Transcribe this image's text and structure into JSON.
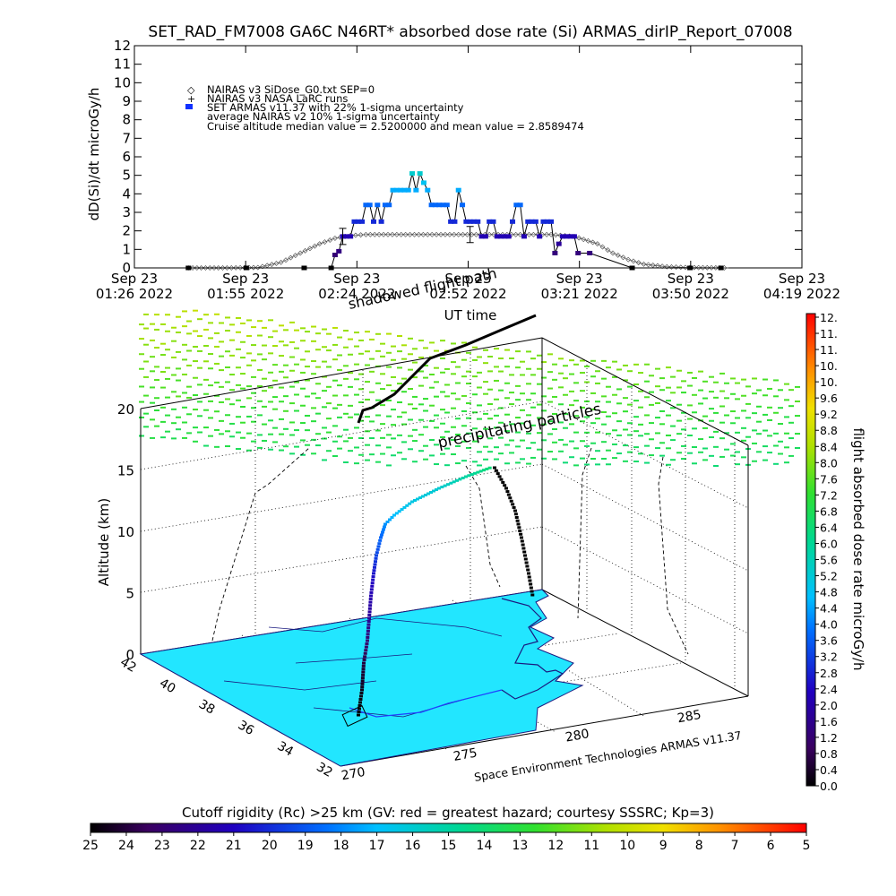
{
  "top_chart": {
    "title": "SET_RAD_FM7008  GA6C N46RT* absorbed dose rate (Si) ARMAS_dirIP_Report_07008",
    "ylabel": "dD(Si)/dt microGy/h",
    "xlabel": "UT time",
    "legend": [
      "NAIRAS v3 SiDose_G0.txt SEP=0",
      "NAIRAS v3 NASA LaRC runs",
      "SET ARMAS v11.37 with 22% 1-sigma uncertainty",
      "average NAIRAS v2 10% 1-sigma uncertainty",
      "Cruise altitude median value = 2.5200000 and mean value = 2.8589474"
    ],
    "x_ticks": [
      {
        "date": "Sep 23",
        "time": "01:26 2022"
      },
      {
        "date": "Sep 23",
        "time": "01:55 2022"
      },
      {
        "date": "Sep 23",
        "time": "02:24 2022"
      },
      {
        "date": "Sep 23",
        "time": "02:52 2022"
      },
      {
        "date": "Sep 23",
        "time": "03:21 2022"
      },
      {
        "date": "Sep 23",
        "time": "03:50 2022"
      },
      {
        "date": "Sep 23",
        "time": "04:19 2022"
      }
    ],
    "y_ticks": [
      "0",
      "1",
      "2",
      "3",
      "4",
      "5",
      "6",
      "7",
      "8",
      "9",
      "10",
      "11",
      "12"
    ]
  },
  "chart_data": [
    {
      "type": "line",
      "title": "SET_RAD_FM7008  GA6C N46RT* absorbed dose rate (Si) ARMAS_dirIP_Report_07008",
      "xlabel": "UT time",
      "ylabel": "dD(Si)/dt microGy/h",
      "xlim": [
        "01:26",
        "04:19"
      ],
      "ylim": [
        0,
        12
      ],
      "series": [
        {
          "name": "NAIRAS v3 SiDose_G0.txt SEP=0",
          "x": [
            "01:40",
            "01:50",
            "01:58",
            "02:04",
            "02:09",
            "02:14",
            "02:18",
            "02:22",
            "02:26",
            "02:34",
            "02:42",
            "02:50",
            "02:58",
            "03:06",
            "03:14",
            "03:20",
            "03:26",
            "03:30",
            "03:34",
            "03:38",
            "03:44",
            "03:50",
            "04:00"
          ],
          "y": [
            0,
            0,
            0.02,
            0.3,
            0.8,
            1.3,
            1.6,
            1.75,
            1.8,
            1.8,
            1.8,
            1.8,
            1.8,
            1.8,
            1.8,
            1.7,
            1.3,
            0.8,
            0.45,
            0.2,
            0.06,
            0.02,
            0
          ]
        },
        {
          "name": "SET ARMAS v11.37 with 22% 1-sigma uncertainty",
          "x": [
            "01:40",
            "01:55",
            "02:10",
            "02:17",
            "02:18",
            "02:19",
            "02:20",
            "02:21",
            "02:22",
            "02:23",
            "02:24",
            "02:25",
            "02:26",
            "02:27",
            "02:28",
            "02:29",
            "02:30",
            "02:31",
            "02:32",
            "02:33",
            "02:34",
            "02:35",
            "02:36",
            "02:37",
            "02:38",
            "02:39",
            "02:40",
            "02:41",
            "02:42",
            "02:43",
            "02:44",
            "02:45",
            "02:46",
            "02:47",
            "02:48",
            "02:49",
            "02:50",
            "02:51",
            "02:52",
            "02:53",
            "02:54",
            "02:55",
            "02:56",
            "02:57",
            "02:58",
            "02:59",
            "03:00",
            "03:01",
            "03:02",
            "03:03",
            "03:04",
            "03:05",
            "03:06",
            "03:07",
            "03:08",
            "03:09",
            "03:10",
            "03:11",
            "03:12",
            "03:13",
            "03:14",
            "03:15",
            "03:16",
            "03:17",
            "03:18",
            "03:19",
            "03:20",
            "03:21",
            "03:24",
            "03:35",
            "03:50",
            "03:58"
          ],
          "y": [
            0,
            0,
            0,
            0,
            0.7,
            0.9,
            1.7,
            1.7,
            1.7,
            2.5,
            2.5,
            2.5,
            3.4,
            3.4,
            2.5,
            3.4,
            2.5,
            3.4,
            3.4,
            4.2,
            4.2,
            4.2,
            4.2,
            4.2,
            5.1,
            4.2,
            5.1,
            4.6,
            4.2,
            3.4,
            3.4,
            3.4,
            3.4,
            3.4,
            2.5,
            2.5,
            4.2,
            3.4,
            2.5,
            2.5,
            2.5,
            2.5,
            1.7,
            1.7,
            2.5,
            2.5,
            1.7,
            1.7,
            1.7,
            1.7,
            2.5,
            3.4,
            3.4,
            1.7,
            2.5,
            2.5,
            2.5,
            1.7,
            2.5,
            2.5,
            2.5,
            0.8,
            1.3,
            1.7,
            1.7,
            1.7,
            1.7,
            0.8,
            0.8,
            0,
            0,
            0
          ]
        }
      ]
    },
    {
      "type": "scatter",
      "title": "",
      "ylabel": "Altitude (km)",
      "zlim": [
        0,
        20
      ],
      "longitude_ticks": [
        "270",
        "275",
        "280",
        "285"
      ],
      "latitude_ticks": [
        "32",
        "34",
        "36",
        "38",
        "40",
        "42"
      ],
      "altitude_ticks": [
        "0",
        "5",
        "10",
        "15",
        "20"
      ]
    }
  ],
  "altitude_ticks": [
    "0",
    "5",
    "10",
    "15",
    "20"
  ],
  "altitude_label": "Altitude (km)",
  "lat_ticks": [
    "32",
    "34",
    "36",
    "38",
    "40",
    "42"
  ],
  "lon_ticks": [
    "270",
    "275",
    "280",
    "285"
  ],
  "annotations": {
    "precip": "precipitating particles",
    "shadowed": "shadowed flight path",
    "credit": "Space Environment Technologies ARMAS v11.37"
  },
  "dose_colorbar": {
    "title": "flight absorbed dose rate microGy/h",
    "ticks": [
      "0.0",
      "0.4",
      "0.8",
      "1.2",
      "1.6",
      "2.0",
      "2.4",
      "2.8",
      "3.2",
      "3.6",
      "4.0",
      "4.4",
      "4.8",
      "5.2",
      "5.6",
      "6.0",
      "6.4",
      "6.8",
      "7.2",
      "7.6",
      "8.0",
      "8.4",
      "8.8",
      "9.2",
      "9.6",
      "10.",
      "10.",
      "11.",
      "11.",
      "12."
    ]
  },
  "rc_colorbar": {
    "title": "Cutoff rigidity (Rc) >25 km (GV: red = greatest hazard; courtesy SSSRC; Kp=3)",
    "ticks": [
      "25",
      "24",
      "23",
      "22",
      "21",
      "20",
      "19",
      "18",
      "17",
      "16",
      "15",
      "14",
      "13",
      "12",
      "11",
      "10",
      "9",
      "8",
      "7",
      "6",
      "5"
    ]
  },
  "colors": {
    "ocean": "#22e6ff",
    "land_outline": "#1a1a80",
    "axis": "#000000"
  }
}
